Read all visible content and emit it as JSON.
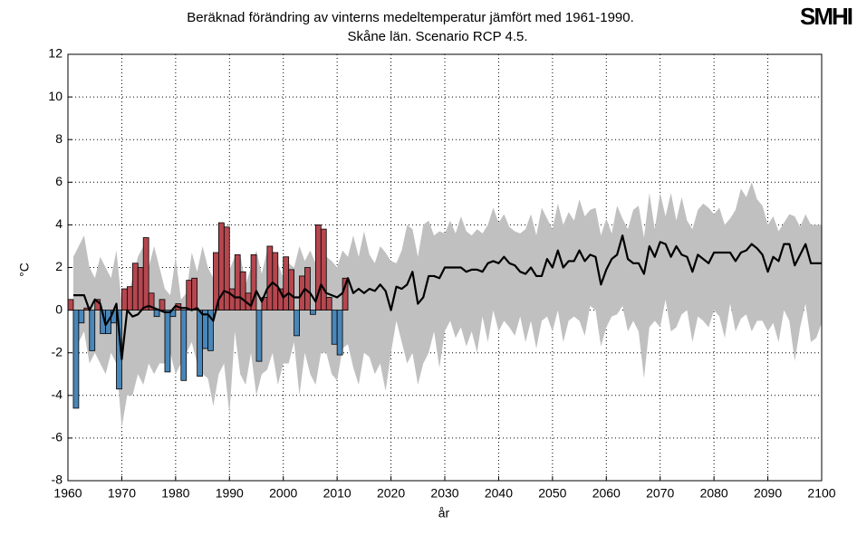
{
  "chart_data": {
    "type": "bar",
    "title": [
      "Beräknad förändring av vinterns medeltemperatur jämfört med 1961-1990.",
      "Skåne län. Scenario RCP 4.5."
    ],
    "logo": "SMHI",
    "xlabel": "år",
    "ylabel": "°C",
    "xlim": [
      1960,
      2100
    ],
    "xticks": [
      1960,
      1970,
      1980,
      1990,
      2000,
      2010,
      2020,
      2030,
      2040,
      2050,
      2060,
      2070,
      2080,
      2090,
      2100
    ],
    "ylim": [
      -8,
      12
    ],
    "yticks": [
      -8,
      -6,
      -4,
      -2,
      0,
      2,
      4,
      6,
      8,
      10,
      12
    ],
    "grid": true,
    "observed": {
      "x": [
        1961,
        1962,
        1963,
        1964,
        1965,
        1966,
        1967,
        1968,
        1969,
        1970,
        1971,
        1972,
        1973,
        1974,
        1975,
        1976,
        1977,
        1978,
        1979,
        1980,
        1981,
        1982,
        1983,
        1984,
        1985,
        1986,
        1987,
        1988,
        1989,
        1990,
        1991,
        1992,
        1993,
        1994,
        1995,
        1996,
        1997,
        1998,
        1999,
        2000,
        2001,
        2002,
        2003,
        2004,
        2005,
        2006,
        2007,
        2008,
        2009,
        2010,
        2011,
        2012
      ],
      "values": [
        0.5,
        -4.6,
        -0.6,
        0.1,
        -1.9,
        0.5,
        -1.1,
        -1.1,
        -0.6,
        -3.7,
        1.0,
        1.1,
        2.2,
        2.0,
        3.4,
        0.8,
        -0.3,
        0.5,
        -2.9,
        -0.3,
        0.3,
        -3.3,
        1.4,
        1.5,
        -3.1,
        -1.8,
        -1.9,
        2.7,
        4.1,
        3.9,
        1.0,
        2.6,
        1.8,
        0.8,
        2.6,
        -2.4,
        0.6,
        3.0,
        2.7,
        1.0,
        2.5,
        1.9,
        -1.2,
        1.6,
        2.0,
        -0.2,
        4.0,
        3.8,
        0.6,
        -1.6,
        -2.1,
        1.5
      ],
      "positive_color": "#b5474f",
      "negative_color": "#4a86b8"
    },
    "x": [
      1961,
      1962,
      1963,
      1964,
      1965,
      1966,
      1967,
      1968,
      1969,
      1970,
      1971,
      1972,
      1973,
      1974,
      1975,
      1976,
      1977,
      1978,
      1979,
      1980,
      1981,
      1982,
      1983,
      1984,
      1985,
      1986,
      1987,
      1988,
      1989,
      1990,
      1991,
      1992,
      1993,
      1994,
      1995,
      1996,
      1997,
      1998,
      1999,
      2000,
      2001,
      2002,
      2003,
      2004,
      2005,
      2006,
      2007,
      2008,
      2009,
      2010,
      2011,
      2012,
      2013,
      2014,
      2015,
      2016,
      2017,
      2018,
      2019,
      2020,
      2021,
      2022,
      2023,
      2024,
      2025,
      2026,
      2027,
      2028,
      2029,
      2030,
      2031,
      2032,
      2033,
      2034,
      2035,
      2036,
      2037,
      2038,
      2039,
      2040,
      2041,
      2042,
      2043,
      2044,
      2045,
      2046,
      2047,
      2048,
      2049,
      2050,
      2051,
      2052,
      2053,
      2054,
      2055,
      2056,
      2057,
      2058,
      2059,
      2060,
      2061,
      2062,
      2063,
      2064,
      2065,
      2066,
      2067,
      2068,
      2069,
      2070,
      2071,
      2072,
      2073,
      2074,
      2075,
      2076,
      2077,
      2078,
      2079,
      2080,
      2081,
      2082,
      2083,
      2084,
      2085,
      2086,
      2087,
      2088,
      2089,
      2090,
      2091,
      2092,
      2093,
      2094,
      2095,
      2096,
      2097,
      2098,
      2099,
      2100
    ],
    "mean": {
      "color": "#000000",
      "values": [
        0.7,
        0.7,
        0.7,
        0,
        0.5,
        0.3,
        -0.7,
        -0.3,
        0.3,
        -2.3,
        0,
        -0.3,
        -0.2,
        0.1,
        0.2,
        0.1,
        0,
        -0.1,
        -0.1,
        0.2,
        0.1,
        0.1,
        0,
        0.1,
        -0.2,
        -0.2,
        -0.5,
        0.5,
        0.9,
        0.8,
        0.6,
        0.6,
        0.4,
        0.2,
        0.9,
        0.4,
        1.0,
        1.3,
        1.1,
        0.6,
        0.8,
        0.6,
        0.6,
        1.0,
        0.8,
        0.4,
        1.2,
        0.8,
        0.7,
        0.6,
        0.8,
        1.5,
        0.8,
        1.0,
        0.8,
        1.0,
        0.9,
        1.2,
        0.9,
        0,
        1.1,
        1.0,
        1.2,
        1.8,
        0.3,
        0.6,
        1.6,
        1.6,
        1.5,
        2.0,
        2.0,
        2.0,
        2.0,
        1.8,
        1.9,
        1.9,
        1.8,
        2.2,
        2.3,
        2.2,
        2.5,
        2.2,
        2.1,
        1.8,
        1.7,
        2.0,
        1.6,
        1.6,
        2.4,
        2.0,
        2.8,
        2.0,
        2.3,
        2.3,
        2.8,
        2.3,
        2.6,
        2.5,
        1.2,
        1.9,
        2.4,
        2.6,
        3.5,
        2.4,
        2.2,
        2.2,
        1.7,
        3.0,
        2.5,
        3.2,
        3.1,
        2.5,
        3.0,
        2.6,
        2.5,
        1.8,
        2.6,
        2.4,
        2.2,
        2.7,
        2.7,
        2.7,
        2.7,
        2.3,
        2.7,
        2.8,
        3.1,
        2.9,
        2.6,
        1.8,
        2.5,
        2.3,
        3.1,
        3.1,
        2.1,
        2.6,
        3.1,
        2.2,
        2.2,
        2.2
      ]
    },
    "range": {
      "color": "#c0c0c0",
      "max": [
        2.5,
        3.0,
        3.5,
        2.0,
        1.5,
        2.5,
        2.0,
        1.5,
        2.8,
        0.3,
        0.5,
        1.5,
        2.5,
        3.0,
        2.0,
        3.0,
        2.0,
        1.0,
        0.7,
        2.5,
        0.5,
        0.8,
        2.7,
        1.8,
        3.0,
        2.0,
        1.5,
        2.5,
        3.0,
        1.9,
        2.5,
        2.6,
        1.2,
        2.0,
        2.8,
        1.7,
        2.8,
        2.5,
        2.2,
        1.5,
        2.2,
        2.0,
        3.0,
        2.3,
        2.8,
        2.2,
        3.2,
        2.5,
        2.3,
        2.0,
        2.8,
        2.5,
        3.5,
        2.5,
        3.7,
        2.6,
        2.2,
        3.0,
        2.7,
        2.3,
        2.2,
        2.8,
        4.0,
        3.8,
        2.5,
        4.0,
        4.2,
        3.5,
        3.7,
        3.6,
        4.2,
        3.6,
        4.4,
        3.7,
        3.5,
        3.8,
        3.6,
        4.0,
        4.8,
        4.1,
        4.5,
        3.9,
        3.7,
        3.6,
        3.8,
        4.5,
        3.5,
        4.8,
        4.3,
        3.8,
        5.0,
        4.0,
        4.6,
        4.2,
        5.2,
        4.4,
        4.7,
        4.8,
        3.5,
        4.3,
        3.6,
        4.9,
        4.3,
        3.8,
        4.7,
        4.9,
        3.4,
        5.5,
        3.8,
        5.5,
        4.4,
        5.5,
        4.2,
        5.3,
        4.2,
        3.8,
        4.7,
        5.0,
        4.8,
        4.5,
        4.8,
        4.0,
        4.3,
        4.7,
        5.7,
        5.3,
        6.0,
        5.2,
        4.9,
        4.0,
        4.4,
        3.7,
        4.1,
        4.5,
        4.4,
        3.9,
        4.5,
        4.0,
        4.0,
        4.0
      ],
      "min": [
        -1.8,
        -1.5,
        -1.0,
        -2.5,
        -2.0,
        -2.5,
        -3.0,
        -2.0,
        -2.5,
        -5.5,
        -4.0,
        -4.0,
        -3.0,
        -3.5,
        -2.5,
        -3.0,
        -2.5,
        -2.5,
        -2.0,
        -3.0,
        -2.5,
        -2.0,
        -1.5,
        -2.5,
        -3.0,
        -3.2,
        -4.5,
        -3.0,
        -2.5,
        -4.9,
        -1.0,
        -3.0,
        -3.5,
        -2.0,
        -4.0,
        -3.0,
        -2.8,
        -2.0,
        -3.5,
        -2.5,
        -2.5,
        -1.5,
        -4.0,
        -2.0,
        -3.0,
        -3.5,
        -2.0,
        -2.0,
        -3.0,
        -3.3,
        -1.8,
        -1.6,
        -2.7,
        -3.5,
        -2.0,
        -2.2,
        -3.0,
        -2.5,
        -3.8,
        -2.0,
        -0.5,
        -1.5,
        -2.5,
        -2.0,
        -3.5,
        -2.5,
        -2.0,
        -1.0,
        -2.7,
        -1.0,
        -0.5,
        -1.3,
        -0.8,
        -1.7,
        -1.0,
        -2.0,
        -0.3,
        -1.5,
        0,
        -1.0,
        -0.5,
        -0.8,
        -1.2,
        -0.3,
        -1.5,
        -0.5,
        -1.8,
        -0.5,
        -0.3,
        -1.0,
        0,
        -1.5,
        -0.5,
        -0.3,
        -0.5,
        -1.2,
        0.2,
        0,
        -1.7,
        -0.8,
        -0.3,
        -0.2,
        0.2,
        -1.0,
        -0.5,
        -1.0,
        -3.2,
        -0.8,
        -0.5,
        -0.8,
        0.5,
        -1.0,
        -0.8,
        -0.2,
        0,
        -1.5,
        -0.3,
        -0.5,
        -0.8,
        0,
        -0.3,
        -1.3,
        0.3,
        -1.0,
        -0.4,
        -0.2,
        -1.0,
        -0.5,
        -0.5,
        -1.0,
        -0.6,
        -1.5,
        0,
        -0.5,
        -2.4,
        -0.8,
        0.3,
        -1.5,
        -1.3,
        -0.6
      ]
    }
  }
}
